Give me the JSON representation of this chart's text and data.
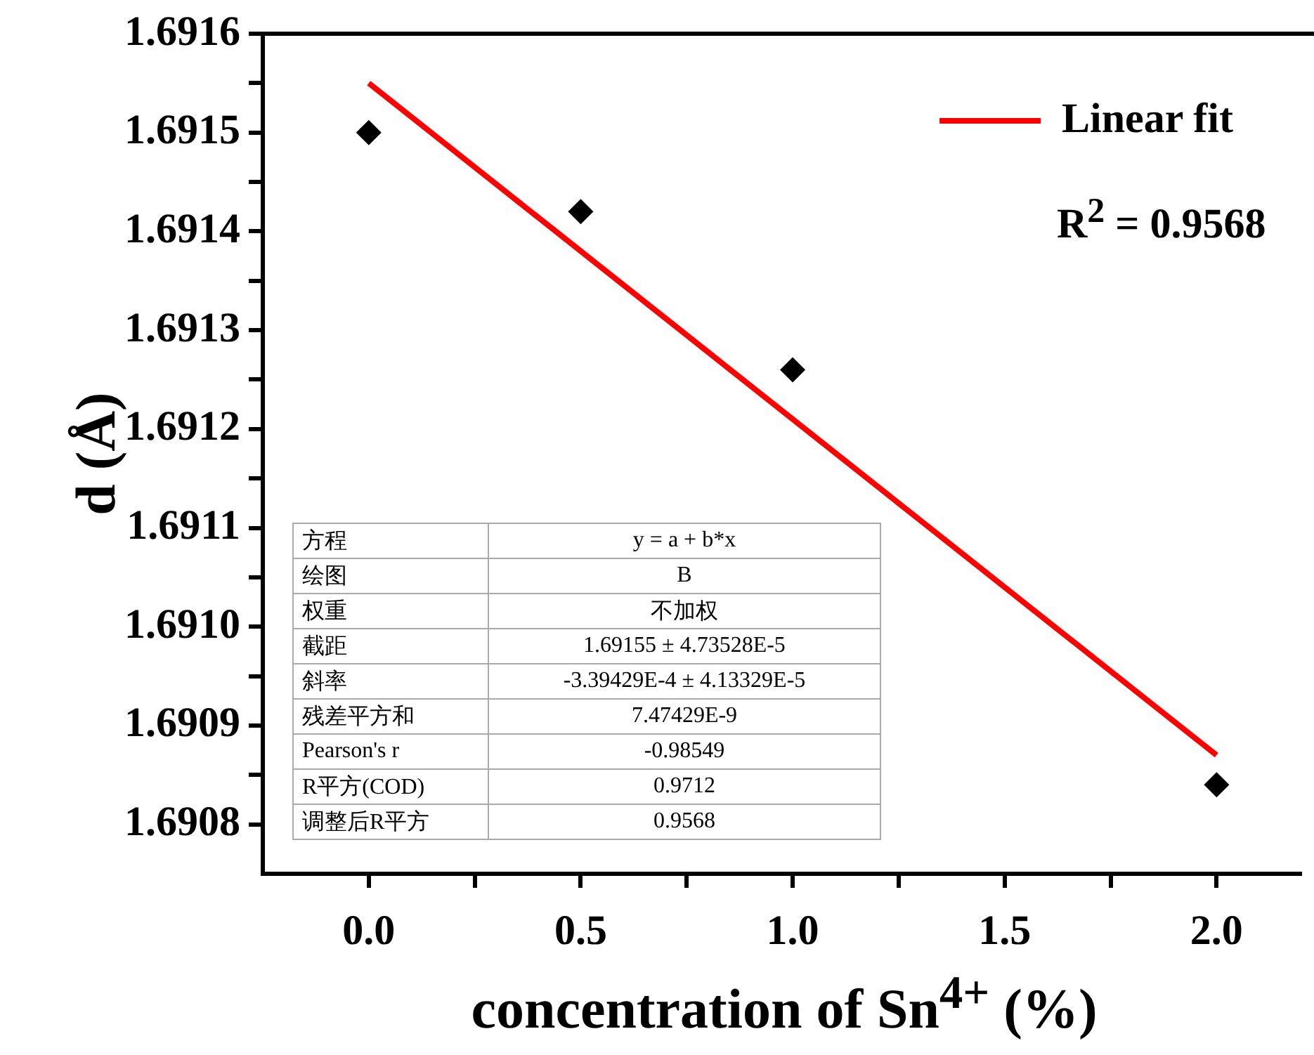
{
  "chart_data": {
    "type": "scatter",
    "xlabel": "concentration of Sn$^{4+}$ (%)",
    "ylabel": "d (Å)",
    "xlim": [
      -0.25,
      2.2
    ],
    "xticks": [
      {
        "value": 0,
        "label": "0.0"
      },
      {
        "value": 0.25,
        "label": null
      },
      {
        "value": 0.5,
        "label": "0.5"
      },
      {
        "value": 0.75,
        "label": null
      },
      {
        "value": 1,
        "label": "1.0"
      },
      {
        "value": 1.25,
        "label": null
      },
      {
        "value": 1.5,
        "label": "1.5"
      },
      {
        "value": 1.75,
        "label": null
      },
      {
        "value": 2,
        "label": "2.0"
      }
    ],
    "ylim": [
      1.69075,
      1.6916
    ],
    "yticks": [
      {
        "value": 1.6908,
        "label": "1.6908"
      },
      {
        "value": 1.69085,
        "label": null
      },
      {
        "value": 1.6909,
        "label": "1.6909"
      },
      {
        "value": 1.69095,
        "label": null
      },
      {
        "value": 1.691,
        "label": "1.6910"
      },
      {
        "value": 1.69105,
        "label": null
      },
      1.6911,
      {
        "value": 1.69115,
        "label": null
      },
      1.6912,
      {
        "value": 1.69125,
        "label": null
      },
      1.6913,
      {
        "value": 1.69135,
        "label": null
      },
      1.6914,
      {
        "value": 1.69145,
        "label": null
      },
      1.6915,
      {
        "value": 1.69155,
        "label": null
      },
      1.6916
    ],
    "grid": false,
    "legend": "top right",
    "series": [
      {
        "marker": "diamond",
        "color": "#000000",
        "x": [
          0,
          0.5,
          1,
          2
        ],
        "values": [
          1.6915,
          1.69142,
          1.69126,
          1.69084
        ]
      },
      {
        "type": "line",
        "marker": "none",
        "name": "Linear fit",
        "color": "#ff0000",
        "x": [
          0,
          2
        ],
        "values": [
          1.69155,
          1.69087
        ]
      }
    ],
    "annotations": [
      "R$^{2}$ = 0.9568",
      "方程",
      "y = a + b*x",
      "绘图",
      "B",
      "权重",
      "不加权",
      "截距",
      "1.69155 ± 4.73528E-5",
      "斜率",
      "-3.39429E-4 ± 4.13329E-5",
      "残差平方和",
      "7.47429E-9",
      "Pearson's r",
      "-0.98549",
      "R平方(COD)",
      "0.9712",
      "调整后R平方",
      "0.9568"
    ]
  }
}
